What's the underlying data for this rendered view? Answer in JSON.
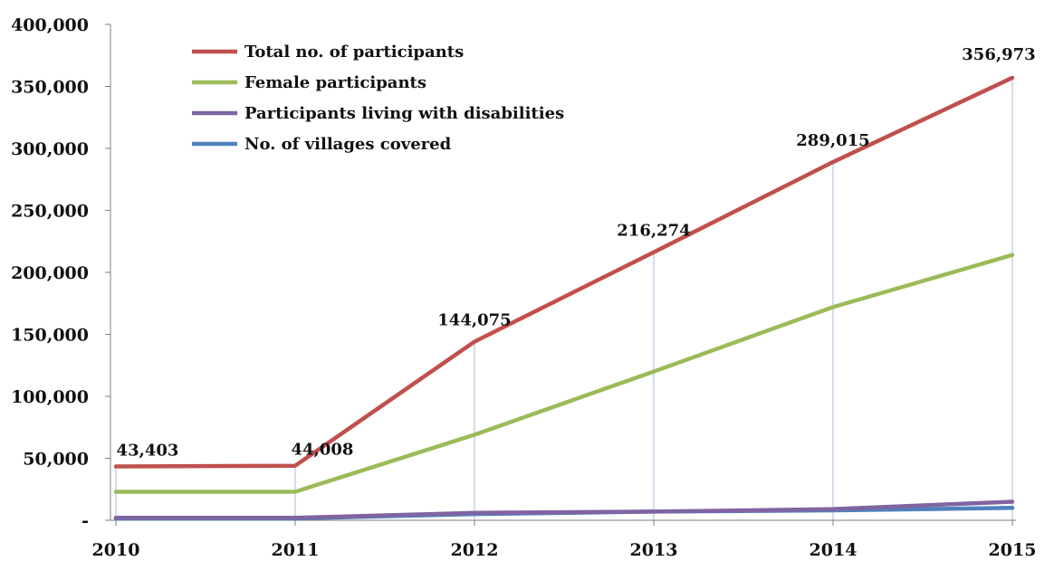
{
  "chart_data": {
    "type": "line",
    "title": "",
    "xlabel": "",
    "ylabel": "",
    "categories": [
      "2010",
      "2011",
      "2012",
      "2013",
      "2014",
      "2015"
    ],
    "ylim": [
      0,
      400000
    ],
    "yticks": [
      0,
      50000,
      100000,
      150000,
      200000,
      250000,
      300000,
      350000,
      400000
    ],
    "ytick_labels": [
      "-",
      "50,000",
      "100,000",
      "150,000",
      "200,000",
      "250,000",
      "300,000",
      "350,000",
      "400,000"
    ],
    "grid": false,
    "drop_lines": true,
    "legend_position": "top-left",
    "series": [
      {
        "name": "Total no. of participants",
        "color": "#c0504d",
        "values": [
          43403,
          44008,
          144075,
          216274,
          289015,
          356973
        ],
        "data_labels": [
          "43,403",
          "44,008",
          "144,075",
          "216,274",
          "289,015",
          "356,973"
        ]
      },
      {
        "name": "Female participants",
        "color": "#9bbb59",
        "values": [
          23000,
          23000,
          69000,
          120000,
          172000,
          214000
        ]
      },
      {
        "name": "Participants living with disabilities",
        "color": "#8064a2",
        "values": [
          2000,
          2000,
          6000,
          7000,
          9000,
          15000
        ]
      },
      {
        "name": "No. of villages covered",
        "color": "#4f81bd",
        "values": [
          1500,
          1500,
          5000,
          7000,
          8000,
          10000
        ]
      }
    ]
  }
}
